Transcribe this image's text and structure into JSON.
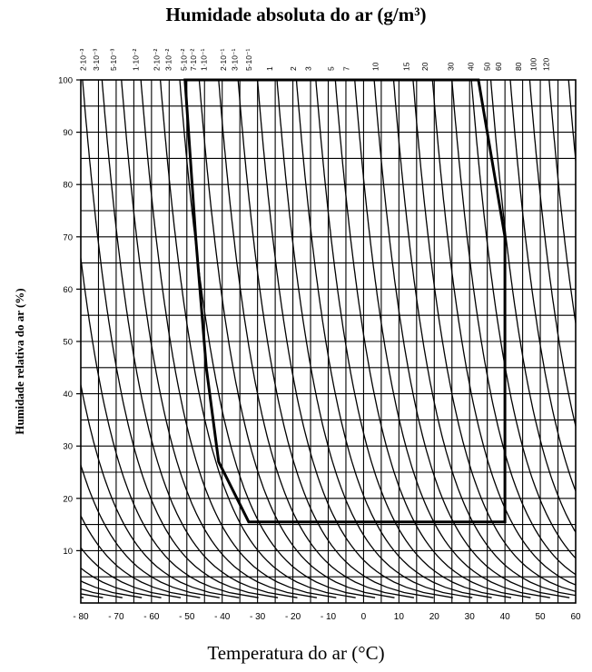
{
  "chart_data": {
    "type": "line",
    "title": "Humidade absoluta do ar (g/m³)",
    "xlabel": "Temperatura do ar (°C)",
    "ylabel": "Humidade relativa do ar (%)",
    "xlim": [
      -80,
      60
    ],
    "ylim": [
      0,
      100
    ],
    "x_ticks": [
      "-80",
      "-70",
      "-60",
      "-50",
      "-40",
      "-30",
      "-20",
      "-10",
      "0",
      "10",
      "20",
      "30",
      "40",
      "50",
      "60"
    ],
    "y_ticks": [
      "10",
      "20",
      "30",
      "40",
      "50",
      "60",
      "70",
      "80",
      "90",
      "100"
    ],
    "grid": true,
    "top_axis_labels": [
      {
        "label": "2·10⁻³",
        "value": 0.002,
        "temp_at_100": -79.4
      },
      {
        "label": "3·10⁻³",
        "value": 0.003,
        "temp_at_100": -75.6
      },
      {
        "label": "5·10⁻³",
        "value": 0.005,
        "temp_at_100": -70.7
      },
      {
        "label": "1·10⁻²",
        "value": 0.01,
        "temp_at_100": -64.4
      },
      {
        "label": "2·10⁻²",
        "value": 0.02,
        "temp_at_100": -58.6
      },
      {
        "label": "3·10⁻²",
        "value": 0.03,
        "temp_at_100": -55.2
      },
      {
        "label": "5·10⁻²",
        "value": 0.05,
        "temp_at_100": -50.9
      },
      {
        "label": "7·10⁻²",
        "value": 0.07,
        "temp_at_100": -48.1
      },
      {
        "label": "1·10⁻¹",
        "value": 0.1,
        "temp_at_100": -45.2
      },
      {
        "label": "2·10⁻¹",
        "value": 0.2,
        "temp_at_100": -39.7
      },
      {
        "label": "3·10⁻¹",
        "value": 0.3,
        "temp_at_100": -36.5
      },
      {
        "label": "5·10⁻¹",
        "value": 0.5,
        "temp_at_100": -32.5
      },
      {
        "label": "1",
        "value": 1,
        "temp_at_100": -26.6
      },
      {
        "label": "2",
        "value": 2,
        "temp_at_100": -19.9
      },
      {
        "label": "3",
        "value": 3,
        "temp_at_100": -15.6
      },
      {
        "label": "5",
        "value": 5,
        "temp_at_100": -9.2
      },
      {
        "label": "7",
        "value": 7,
        "temp_at_100": -4.9
      },
      {
        "label": "10",
        "value": 10,
        "temp_at_100": 3.4
      },
      {
        "label": "15",
        "value": 15,
        "temp_at_100": 12.1
      },
      {
        "label": "20",
        "value": 20,
        "temp_at_100": 17.3
      },
      {
        "label": "30",
        "value": 30,
        "temp_at_100": 24.7
      },
      {
        "label": "40",
        "value": 40,
        "temp_at_100": 30.3
      },
      {
        "label": "50",
        "value": 50,
        "temp_at_100": 34.9
      },
      {
        "label": "60",
        "value": 60,
        "temp_at_100": 38.2
      },
      {
        "label": "80",
        "value": 80,
        "temp_at_100": 43.8
      },
      {
        "label": "100",
        "value": 100,
        "temp_at_100": 48.1
      },
      {
        "label": "120",
        "value": 120,
        "temp_at_100": 51.7
      }
    ],
    "comfort_zone": {
      "points": [
        [
          -50.5,
          100
        ],
        [
          -47.5,
          70
        ],
        [
          -44.5,
          45
        ],
        [
          -41,
          27
        ],
        [
          -32.5,
          15.5
        ],
        [
          40,
          15.5
        ],
        [
          40,
          70
        ],
        [
          32.5,
          100
        ]
      ]
    }
  },
  "colors": {
    "lines": "#000000",
    "background": "#ffffff"
  }
}
